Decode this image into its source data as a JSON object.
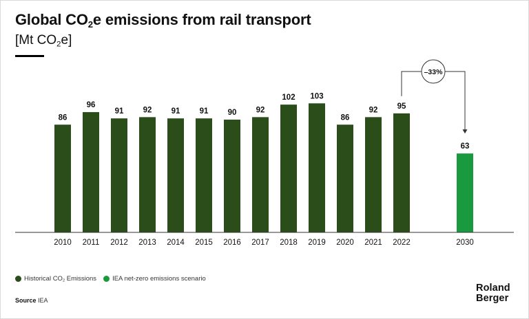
{
  "header": {
    "title_main": "Global CO",
    "title_sub": "2",
    "title_tail": "e emissions from rail transport",
    "unit_open": "[Mt CO",
    "unit_sub": "2",
    "unit_close": "e]"
  },
  "colors": {
    "historical": "#2a4d1a",
    "scenario": "#199a3e",
    "text": "#111111"
  },
  "chart_data": {
    "type": "bar",
    "title": "Global CO2e emissions from rail transport",
    "ylabel": "[Mt CO2e]",
    "xlabel": "",
    "ylim": [
      0,
      110
    ],
    "categories": [
      "2010",
      "2011",
      "2012",
      "2013",
      "2014",
      "2015",
      "2016",
      "2017",
      "2018",
      "2019",
      "2020",
      "2021",
      "2022",
      "2030"
    ],
    "series": [
      {
        "name": "Historical CO2 Emissions",
        "color": "#2a4d1a",
        "values": [
          86,
          96,
          91,
          92,
          91,
          91,
          90,
          92,
          102,
          103,
          86,
          92,
          95,
          null
        ]
      },
      {
        "name": "IEA net-zero emissions scenario",
        "color": "#199a3e",
        "values": [
          null,
          null,
          null,
          null,
          null,
          null,
          null,
          null,
          null,
          null,
          null,
          null,
          null,
          63
        ]
      }
    ],
    "annotation": {
      "label": "–33%",
      "from": "2022",
      "to": "2030"
    },
    "legend_position": "bottom-left"
  },
  "legend": {
    "historical_main": "Historical CO",
    "historical_sub": "2",
    "historical_tail": " Emissions",
    "scenario": "IEA net-zero emissions scenario"
  },
  "footer": {
    "source_label": "Source",
    "source_value": "IEA",
    "brand_line1": "Roland",
    "brand_line2": "Berger"
  }
}
